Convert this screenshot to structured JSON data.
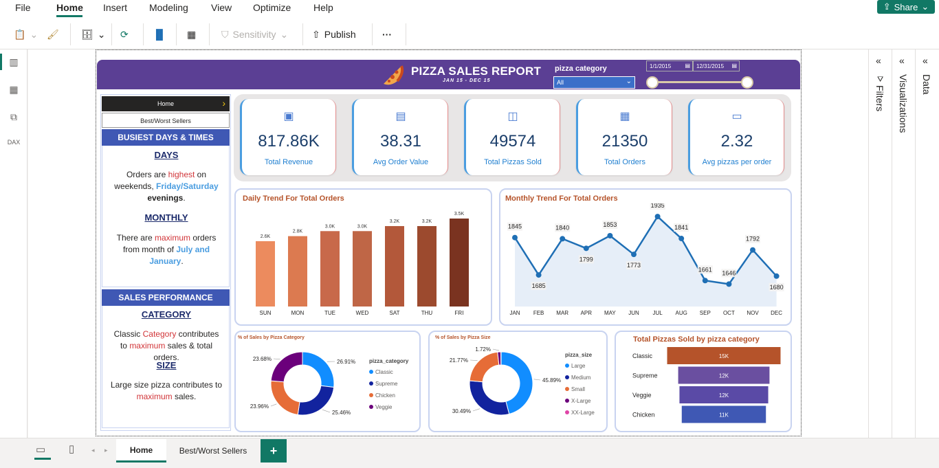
{
  "menu": {
    "items": [
      "File",
      "Home",
      "Insert",
      "Modeling",
      "View",
      "Optimize",
      "Help"
    ],
    "active": "Home",
    "share": "Share"
  },
  "toolbar": {
    "sensitivity": "Sensitivity",
    "publish": "Publish",
    "more": "···"
  },
  "report": {
    "title": "PIZZA SALES REPORT",
    "subtitle": "JAN 15 - DEC 15",
    "slicer_label": "pizza category",
    "slicer_value": "All",
    "date_start": "1/1/2015",
    "date_end": "12/31/2015"
  },
  "nav": {
    "home": "Home",
    "best": "Best/Worst Sellers",
    "busiest_head": "BUSIEST DAYS & TIMES",
    "days_head": "DAYS",
    "days_p1": "Orders are ",
    "days_p2": "highest",
    "days_p3": " on weekends, ",
    "days_p4": "Friday/Saturday",
    "days_p5": "evenings",
    "days_p6": ".",
    "monthly_head": "MONTHLY",
    "monthly_p1": "There are ",
    "monthly_p2": "maximum",
    "monthly_p3": " orders from month of ",
    "monthly_p4": "July and January",
    "monthly_p5": ".",
    "sales_head": "SALES PERFORMANCE",
    "category_head": "CATEGORY",
    "cat_p1": "Classic ",
    "cat_p2": "Category",
    "cat_p3": " contributes to ",
    "cat_p4": "maximum",
    "cat_p5": " sales & total orders.",
    "size_head": "SIZE",
    "size_p1": "Large size pizza contributes to ",
    "size_p2": "maximum",
    "size_p3": " sales."
  },
  "kpis": [
    {
      "value": "817.86K",
      "label": "Total Revenue",
      "icon": "money-icon"
    },
    {
      "value": "38.31",
      "label": "Avg Order Value",
      "icon": "receipt-icon"
    },
    {
      "value": "49574",
      "label": "Total Pizzas Sold",
      "icon": "pizza-box-icon"
    },
    {
      "value": "21350",
      "label": "Total Orders",
      "icon": "orders-icon"
    },
    {
      "value": "2.32",
      "label": "Avg pizzas per order",
      "icon": "monitor-icon"
    }
  ],
  "chart_data": [
    {
      "type": "bar",
      "title": "Daily Trend For Total Orders",
      "categories": [
        "SUN",
        "MON",
        "TUE",
        "WED",
        "SAT",
        "THU",
        "FRI"
      ],
      "values": [
        2.6,
        2.8,
        3.0,
        3.0,
        3.2,
        3.2,
        3.5
      ],
      "labels": [
        "2.6K",
        "2.8K",
        "3.0K",
        "3.0K",
        "3.2K",
        "3.2K",
        "3.5K"
      ],
      "colors": [
        "#ec8b5e",
        "#dc7a50",
        "#c8694a",
        "#bf6646",
        "#b3583a",
        "#9c4a2e",
        "#7a3320"
      ]
    },
    {
      "type": "line",
      "title": "Monthly Trend For Total Orders",
      "categories": [
        "JAN",
        "FEB",
        "MAR",
        "APR",
        "MAY",
        "JUN",
        "JUL",
        "AUG",
        "SEP",
        "OCT",
        "NOV",
        "DEC"
      ],
      "values": [
        1845,
        1685,
        1840,
        1799,
        1853,
        1773,
        1935,
        1841,
        1661,
        1646,
        1792,
        1680
      ],
      "color": "#1f6fb5"
    },
    {
      "type": "pie",
      "title": "% of Sales by Pizza Category",
      "legend_title": "pizza_category",
      "labels": [
        "Classic",
        "Supreme",
        "Chicken",
        "Veggie"
      ],
      "values": [
        26.91,
        25.46,
        23.96,
        23.68
      ],
      "value_labels": [
        "26.91%",
        "25.46%",
        "23.96%",
        "23.68%"
      ],
      "colors": [
        "#118dff",
        "#12239e",
        "#e66c37",
        "#6b007b"
      ]
    },
    {
      "type": "pie",
      "title": "% of Sales by Pizza Size",
      "legend_title": "pizza_size",
      "labels": [
        "Large",
        "Medium",
        "Small",
        "X-Large",
        "XX-Large"
      ],
      "values": [
        45.89,
        30.49,
        21.77,
        1.72,
        0.12
      ],
      "value_labels": [
        "45.89%",
        "30.49%",
        "21.77%",
        "1.72%",
        ""
      ],
      "colors": [
        "#118dff",
        "#12239e",
        "#e66c37",
        "#6b007b",
        "#e044a7"
      ]
    },
    {
      "type": "bar",
      "orientation": "horizontal",
      "title": "Total Pizzas Sold by pizza category",
      "categories": [
        "Classic",
        "Supreme",
        "Veggie",
        "Chicken"
      ],
      "values": [
        14.888,
        11.987,
        11.649,
        11.05
      ],
      "labels": [
        "15K",
        "12K",
        "12K",
        "11K"
      ],
      "colors": [
        "#b5532a",
        "#6a4fa0",
        "#5a4aa6",
        "#3f58b4"
      ]
    }
  ],
  "tabs": {
    "home": "Home",
    "best": "Best/Worst Sellers",
    "add": "+"
  },
  "panels": {
    "filters": "Filters",
    "visualizations": "Visualizations",
    "data": "Data"
  }
}
